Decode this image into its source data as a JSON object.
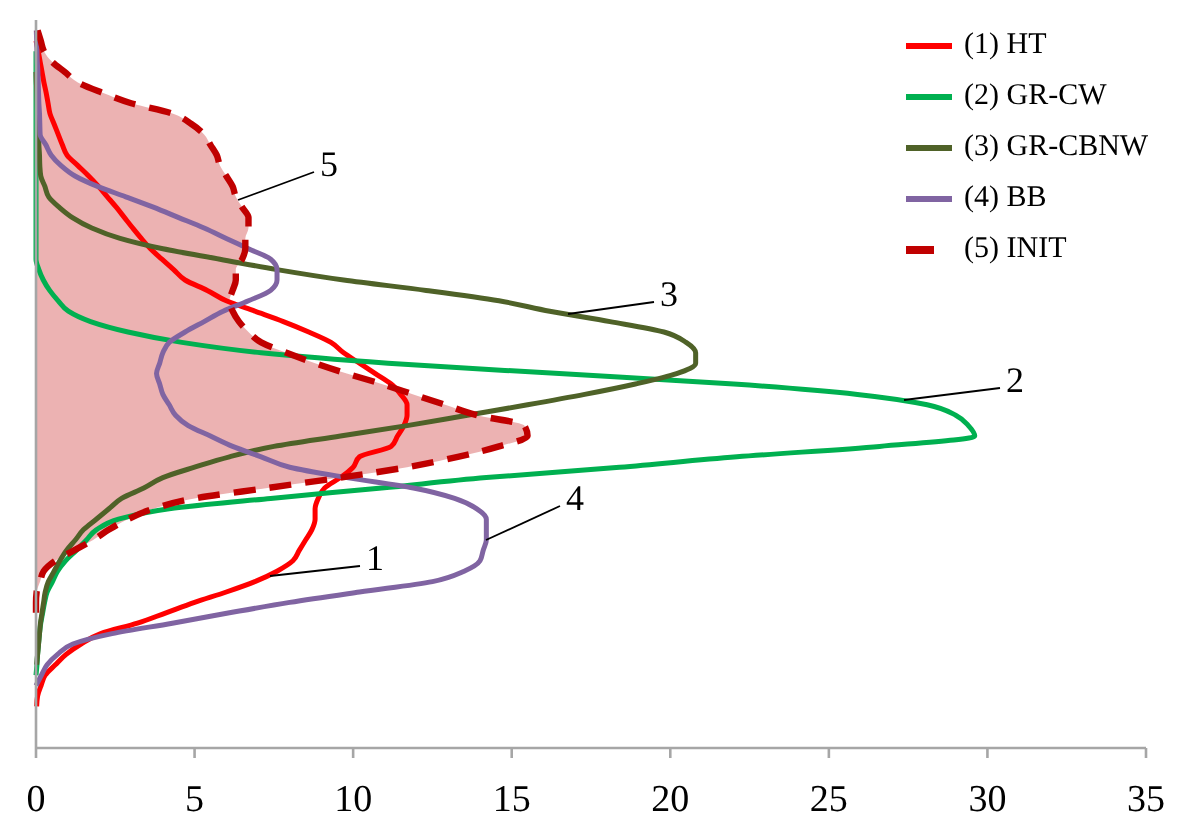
{
  "chart_data": {
    "type": "line",
    "orientation": "horizontal",
    "xlim": [
      0,
      35
    ],
    "xticks": [
      0,
      5,
      10,
      15,
      20,
      25,
      30,
      35
    ],
    "legend": "top right",
    "categories": [
      null,
      null,
      null,
      null,
      null,
      null,
      null,
      null,
      null,
      null,
      null,
      null,
      null,
      null,
      null,
      null,
      null,
      null,
      null,
      null,
      null,
      null,
      null,
      null,
      null,
      null,
      null,
      null,
      null,
      null,
      null,
      null,
      null,
      null,
      null,
      null,
      null,
      null,
      null,
      null,
      null,
      null,
      null,
      null,
      null,
      null,
      null,
      null,
      null,
      null,
      null,
      null,
      null,
      null,
      null,
      null,
      null,
      null,
      null,
      null,
      null,
      null,
      null,
      null,
      null,
      null,
      null
    ],
    "series": [
      {
        "name": "(1) HT",
        "color": "#ff0000",
        "values": [
          null,
          0,
          0.07,
          0.13,
          0.19,
          0.25,
          0.32,
          0.38,
          0.44,
          0.57,
          0.7,
          0.83,
          0.98,
          1.32,
          1.66,
          1.97,
          2.25,
          2.53,
          2.79,
          3.05,
          3.32,
          3.61,
          3.97,
          4.34,
          4.7,
          5.4,
          6.0,
          6.9,
          7.8,
          8.6,
          9.3,
          9.7,
          10.2,
          10.7,
          11.2,
          11.5,
          11.7,
          11.7,
          11.6,
          11.4,
          11.2,
          10.2,
          10.0,
          9.6,
          9.1,
          8.9,
          8.8,
          8.8,
          8.7,
          8.5,
          8.3,
          8.1,
          7.6,
          6.9,
          6.0,
          5.0,
          4.1,
          3.2,
          2.04,
          1.42,
          0.95,
          0.61,
          0.29,
          0.16,
          0.05,
          0.02,
          null
        ]
      },
      {
        "name": "(2) GR-CW",
        "color": "#00b050",
        "values": [
          null,
          null,
          0,
          0,
          0,
          0,
          0,
          0,
          0,
          0,
          0,
          0,
          0,
          0,
          0,
          0,
          0,
          0,
          0,
          0,
          0,
          0,
          0,
          0.09,
          0.23,
          0.43,
          0.7,
          1.02,
          1.72,
          2.9,
          4.6,
          7.1,
          11.1,
          16.5,
          22.0,
          25.9,
          28.1,
          29.0,
          29.4,
          29.6,
          26.6,
          22.1,
          18.4,
          14.2,
          10.9,
          7.4,
          4.2,
          2.6,
          1.91,
          1.59,
          1.27,
          0.93,
          0.68,
          0.52,
          0.35,
          0.27,
          0.21,
          0.15,
          0.11,
          0.08,
          0.05,
          0.03,
          0,
          null,
          null,
          null,
          null
        ]
      },
      {
        "name": "(3) GR-CBNW",
        "color": "#4f6228",
        "values": [
          null,
          null,
          null,
          null,
          0,
          0.01,
          0.03,
          0.04,
          0.05,
          0.06,
          0.08,
          0.09,
          0.11,
          0.12,
          0.15,
          0.28,
          0.4,
          0.73,
          1.15,
          1.76,
          2.65,
          4.0,
          5.8,
          7.6,
          9.7,
          12.3,
          14.6,
          16.2,
          18.1,
          19.8,
          20.5,
          20.8,
          20.8,
          20.2,
          18.9,
          17.3,
          15.5,
          13.6,
          11.7,
          9.6,
          7.5,
          6.1,
          5.0,
          4.0,
          3.4,
          2.7,
          2.3,
          1.9,
          1.5,
          1.24,
          0.96,
          0.75,
          0.57,
          0.39,
          0.29,
          0.24,
          0.19,
          0.14,
          0.11,
          0.08,
          0.05,
          0.02,
          null,
          null,
          null,
          null,
          null
        ]
      },
      {
        "name": "(4) BB",
        "color": "#8064a2",
        "values": [
          0.01,
          0.02,
          0.03,
          0.04,
          0.06,
          0.07,
          0.08,
          0.09,
          0.11,
          0.12,
          0.13,
          0.31,
          0.48,
          0.79,
          1.23,
          1.94,
          2.83,
          3.7,
          4.5,
          5.3,
          6.0,
          6.7,
          7.4,
          7.6,
          7.6,
          7.4,
          6.7,
          5.9,
          5.3,
          4.7,
          4.2,
          4.0,
          3.9,
          3.8,
          3.9,
          4.0,
          4.2,
          4.4,
          4.8,
          5.5,
          6.2,
          7.1,
          8.0,
          9.8,
          11.9,
          13.2,
          13.9,
          14.2,
          14.2,
          14.2,
          14.1,
          14.0,
          13.5,
          12.5,
          10.2,
          8.0,
          6.1,
          4.3,
          2.4,
          1.16,
          0.68,
          0.35,
          0.17,
          0,
          null,
          null,
          null
        ]
      },
      {
        "name": "(5) INIT",
        "type": "area",
        "color": "#c00000",
        "line_style": "dashed",
        "values": [
          0.05,
          0.15,
          0.25,
          0.5,
          0.91,
          1.32,
          2.1,
          3.0,
          4.3,
          4.9,
          5.3,
          5.5,
          5.7,
          5.8,
          6.0,
          6.2,
          6.3,
          6.5,
          6.7,
          6.7,
          6.6,
          6.6,
          6.5,
          6.3,
          6.3,
          6.2,
          6.1,
          6.2,
          6.4,
          6.7,
          7.1,
          7.9,
          8.8,
          9.8,
          10.9,
          11.9,
          12.9,
          13.9,
          15.4,
          15.5,
          14.6,
          13.3,
          11.7,
          9.6,
          7.3,
          5.0,
          3.7,
          2.9,
          2.3,
          1.8,
          1.2,
          0.6,
          0.24,
          0.13,
          0.02,
          0,
          0,
          null,
          null,
          null,
          null,
          null,
          null,
          null,
          null,
          null,
          null
        ]
      }
    ],
    "annotations": [
      "5",
      "3",
      "2",
      "4",
      "1"
    ]
  }
}
